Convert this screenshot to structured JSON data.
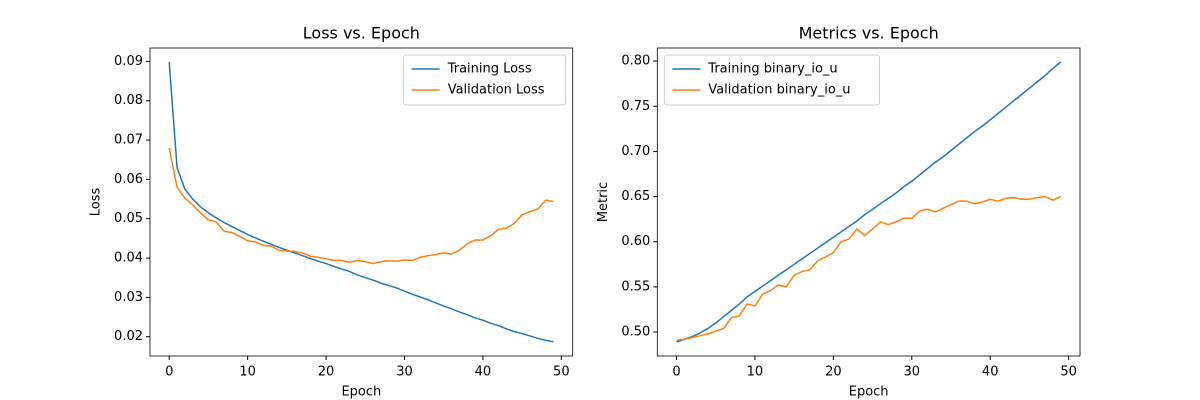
{
  "chart_data": [
    {
      "type": "line",
      "title": "Loss vs. Epoch",
      "xlabel": "Epoch",
      "ylabel": "Loss",
      "x": [
        0,
        1,
        2,
        3,
        4,
        5,
        6,
        7,
        8,
        9,
        10,
        11,
        12,
        13,
        14,
        15,
        16,
        17,
        18,
        19,
        20,
        21,
        22,
        23,
        24,
        25,
        26,
        27,
        28,
        29,
        30,
        31,
        32,
        33,
        34,
        35,
        36,
        37,
        38,
        39,
        40,
        41,
        42,
        43,
        44,
        45,
        46,
        47,
        48,
        49
      ],
      "series": [
        {
          "name": "Training Loss",
          "color": "#1f77b4",
          "values": [
            0.0898,
            0.063,
            0.0575,
            0.055,
            0.053,
            0.0515,
            0.0502,
            0.049,
            0.048,
            0.047,
            0.046,
            0.0451,
            0.0443,
            0.0435,
            0.0427,
            0.042,
            0.0413,
            0.0406,
            0.0399,
            0.0392,
            0.0386,
            0.0379,
            0.0372,
            0.0366,
            0.0357,
            0.035,
            0.0344,
            0.0336,
            0.033,
            0.0324,
            0.0316,
            0.0308,
            0.0301,
            0.0294,
            0.0286,
            0.0278,
            0.0271,
            0.0263,
            0.0256,
            0.0248,
            0.0242,
            0.0234,
            0.0228,
            0.022,
            0.0213,
            0.0208,
            0.0202,
            0.0196,
            0.0191,
            0.0187
          ]
        },
        {
          "name": "Validation Loss",
          "color": "#ff7f0e",
          "values": [
            0.068,
            0.058,
            0.0552,
            0.0535,
            0.0515,
            0.0497,
            0.0492,
            0.0468,
            0.0465,
            0.0455,
            0.0444,
            0.0441,
            0.0432,
            0.043,
            0.042,
            0.0418,
            0.0417,
            0.0413,
            0.0405,
            0.0402,
            0.0398,
            0.0394,
            0.0394,
            0.0389,
            0.0394,
            0.0391,
            0.0386,
            0.0391,
            0.0393,
            0.0392,
            0.0395,
            0.0394,
            0.0402,
            0.0406,
            0.0409,
            0.0413,
            0.041,
            0.042,
            0.0436,
            0.0446,
            0.0446,
            0.0457,
            0.0473,
            0.0476,
            0.0488,
            0.051,
            0.0518,
            0.0525,
            0.0547,
            0.0544
          ]
        }
      ],
      "xlim": [
        -2.45,
        51.45
      ],
      "xticks": [
        0,
        10,
        20,
        30,
        40,
        50
      ],
      "ylim": [
        0.0151,
        0.0934
      ],
      "yticks": [
        0.02,
        0.03,
        0.04,
        0.05,
        0.06,
        0.07,
        0.08,
        0.09
      ],
      "legend": "upper right"
    },
    {
      "type": "line",
      "title": "Metrics vs. Epoch",
      "xlabel": "Epoch",
      "ylabel": "Metric",
      "x": [
        0,
        1,
        2,
        3,
        4,
        5,
        6,
        7,
        8,
        9,
        10,
        11,
        12,
        13,
        14,
        15,
        16,
        17,
        18,
        19,
        20,
        21,
        22,
        23,
        24,
        25,
        26,
        27,
        28,
        29,
        30,
        31,
        32,
        33,
        34,
        35,
        36,
        37,
        38,
        39,
        40,
        41,
        42,
        43,
        44,
        45,
        46,
        47,
        48,
        49
      ],
      "series": [
        {
          "name": "Training binary_io_u",
          "color": "#1f77b4",
          "values": [
            0.489,
            0.492,
            0.495,
            0.499,
            0.504,
            0.51,
            0.517,
            0.524,
            0.531,
            0.539,
            0.545,
            0.551,
            0.557,
            0.563,
            0.569,
            0.575,
            0.581,
            0.587,
            0.593,
            0.599,
            0.605,
            0.611,
            0.617,
            0.623,
            0.63,
            0.636,
            0.642,
            0.648,
            0.654,
            0.661,
            0.667,
            0.674,
            0.681,
            0.688,
            0.694,
            0.701,
            0.708,
            0.715,
            0.722,
            0.728,
            0.735,
            0.742,
            0.749,
            0.756,
            0.763,
            0.77,
            0.777,
            0.784,
            0.792,
            0.799
          ]
        },
        {
          "name": "Validation binary_io_u",
          "color": "#ff7f0e",
          "values": [
            0.491,
            0.492,
            0.494,
            0.496,
            0.498,
            0.501,
            0.504,
            0.516,
            0.518,
            0.531,
            0.529,
            0.542,
            0.546,
            0.552,
            0.55,
            0.563,
            0.567,
            0.569,
            0.579,
            0.583,
            0.588,
            0.6,
            0.603,
            0.614,
            0.607,
            0.614,
            0.622,
            0.619,
            0.622,
            0.626,
            0.626,
            0.634,
            0.636,
            0.633,
            0.637,
            0.641,
            0.645,
            0.645,
            0.642,
            0.644,
            0.647,
            0.645,
            0.648,
            0.649,
            0.647,
            0.647,
            0.649,
            0.65,
            0.646,
            0.65
          ]
        }
      ],
      "xlim": [
        -2.45,
        51.45
      ],
      "xticks": [
        0,
        10,
        20,
        30,
        40,
        50
      ],
      "ylim": [
        0.4735,
        0.8145
      ],
      "yticks": [
        {
          "value": 0.5,
          "label": "0.50"
        },
        0.55,
        {
          "value": 0.6,
          "label": "0.60"
        },
        0.65,
        {
          "value": 0.7,
          "label": "0.70"
        },
        0.75,
        {
          "value": 0.8,
          "label": "0.80"
        }
      ],
      "legend": "upper left"
    }
  ]
}
